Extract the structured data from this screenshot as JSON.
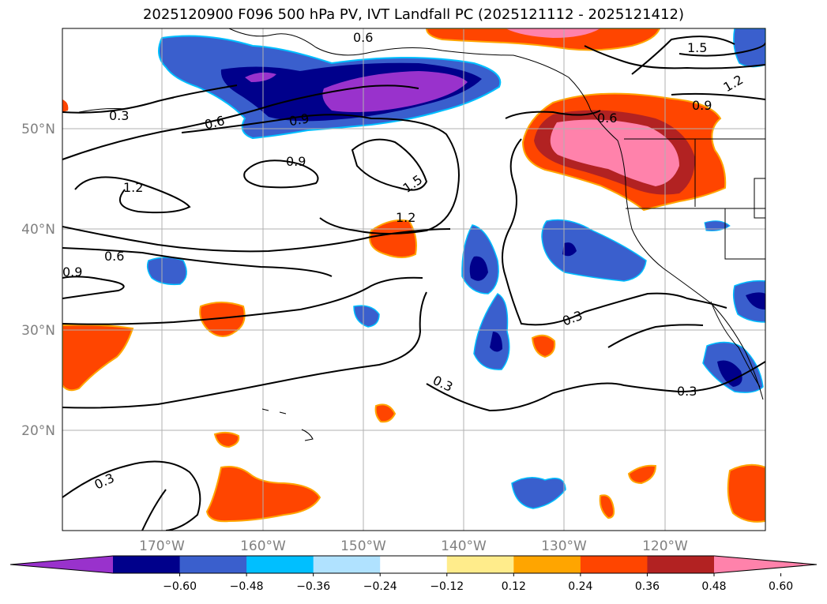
{
  "title": "2025120900 F096 500 hPa PV, IVT Landfall PC (2025121112 - 2025121412)",
  "lon_labels": [
    "170°W",
    "160°W",
    "150°W",
    "140°W",
    "130°W",
    "120°W"
  ],
  "lat_labels": [
    "50°N",
    "40°N",
    "30°N",
    "20°N"
  ],
  "contour_labels": [
    "0.6",
    "1.5",
    "1.2",
    "0.9",
    "0.3",
    "0.6",
    "0.9",
    "0.6",
    "0.9",
    "1.2",
    "1.5",
    "1.2",
    "0.6",
    "0.9",
    "0.3",
    "0.3",
    "0.3",
    "0.3"
  ],
  "colorbar": {
    "colors": [
      "#9932CC",
      "#00008B",
      "#3A5FCD",
      "#00BFFF",
      "#B0E2FF",
      "#FFFFFF",
      "#FFEC8B",
      "#FFA500",
      "#FF4500",
      "#B22222",
      "#FF82AB"
    ],
    "ticks": [
      "−0.60",
      "−0.48",
      "−0.36",
      "−0.24",
      "−0.12",
      "0.12",
      "0.24",
      "0.36",
      "0.48",
      "0.60"
    ]
  }
}
